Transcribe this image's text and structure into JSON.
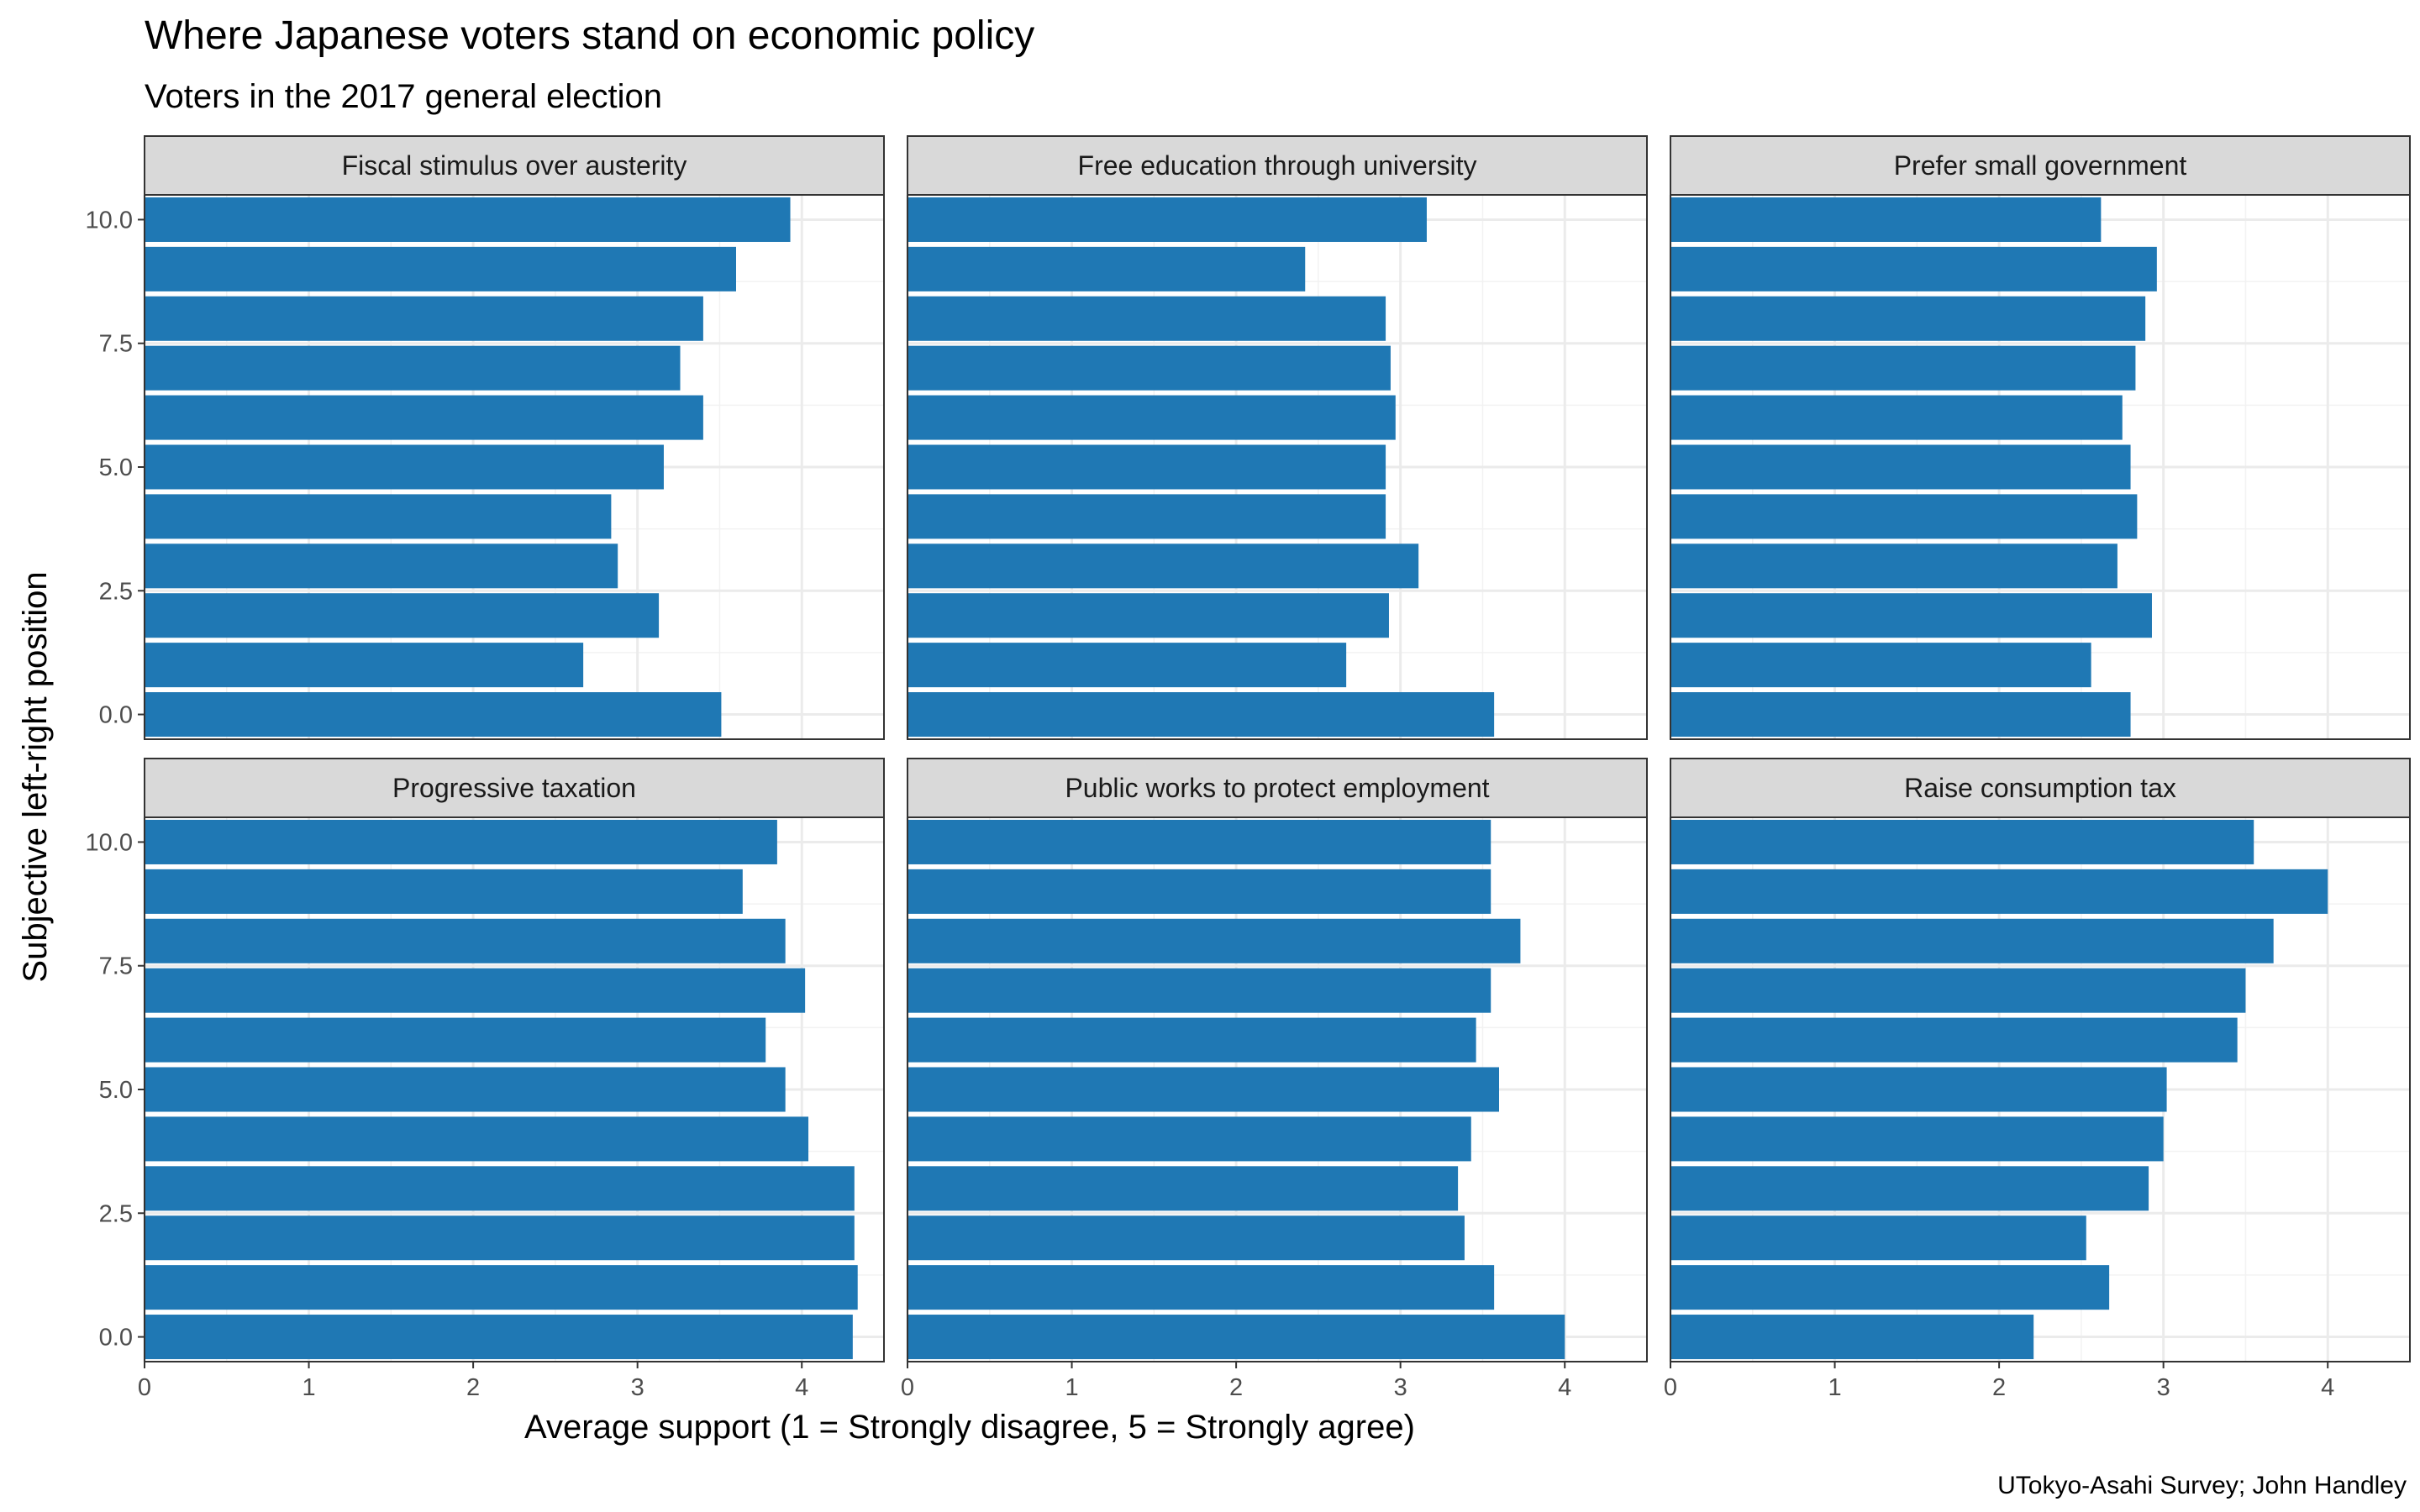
{
  "chart_data": {
    "type": "bar",
    "orientation": "horizontal",
    "title": "Where Japanese voters stand on economic policy",
    "subtitle": "Voters in the 2017 general election",
    "xlabel": "Average support (1 = Strongly disagree, 5 = Strongly agree)",
    "ylabel": "Subjective left-right position",
    "caption": "UTokyo-Asahi Survey; John Handley",
    "xlim": [
      0,
      4.5
    ],
    "ylim": [
      -0.5,
      10.5
    ],
    "x_ticks": [
      0,
      1,
      2,
      3,
      4
    ],
    "y_ticks": [
      0.0,
      2.5,
      5.0,
      7.5,
      10.0
    ],
    "x_tick_labels": [
      "0",
      "1",
      "2",
      "3",
      "4"
    ],
    "y_tick_labels": [
      "0.0",
      "2.5",
      "5.0",
      "7.5",
      "10.0"
    ],
    "grid": true,
    "bar_color": "#1f78b4",
    "positions": [
      0,
      1,
      2,
      3,
      4,
      5,
      6,
      7,
      8,
      9,
      10
    ],
    "panels": [
      {
        "name": "Fiscal stimulus over austerity",
        "values": [
          3.51,
          2.67,
          3.13,
          2.88,
          2.84,
          3.16,
          3.4,
          3.26,
          3.4,
          3.6,
          3.93
        ]
      },
      {
        "name": "Free education through university",
        "values": [
          3.57,
          2.67,
          2.93,
          3.11,
          2.91,
          2.91,
          2.97,
          2.94,
          2.91,
          2.42,
          3.16
        ]
      },
      {
        "name": "Prefer small government",
        "values": [
          2.8,
          2.56,
          2.93,
          2.72,
          2.84,
          2.8,
          2.75,
          2.83,
          2.89,
          2.96,
          2.62
        ]
      },
      {
        "name": "Progressive taxation",
        "values": [
          4.31,
          4.34,
          4.32,
          4.32,
          4.04,
          3.9,
          3.78,
          4.02,
          3.9,
          3.64,
          3.85
        ]
      },
      {
        "name": "Public works to protect employment",
        "values": [
          4.0,
          3.57,
          3.39,
          3.35,
          3.43,
          3.6,
          3.46,
          3.55,
          3.73,
          3.55,
          3.55
        ]
      },
      {
        "name": "Raise consumption tax",
        "values": [
          2.21,
          2.67,
          2.53,
          2.91,
          3.0,
          3.02,
          3.45,
          3.5,
          3.67,
          4.0,
          3.55
        ]
      }
    ]
  }
}
